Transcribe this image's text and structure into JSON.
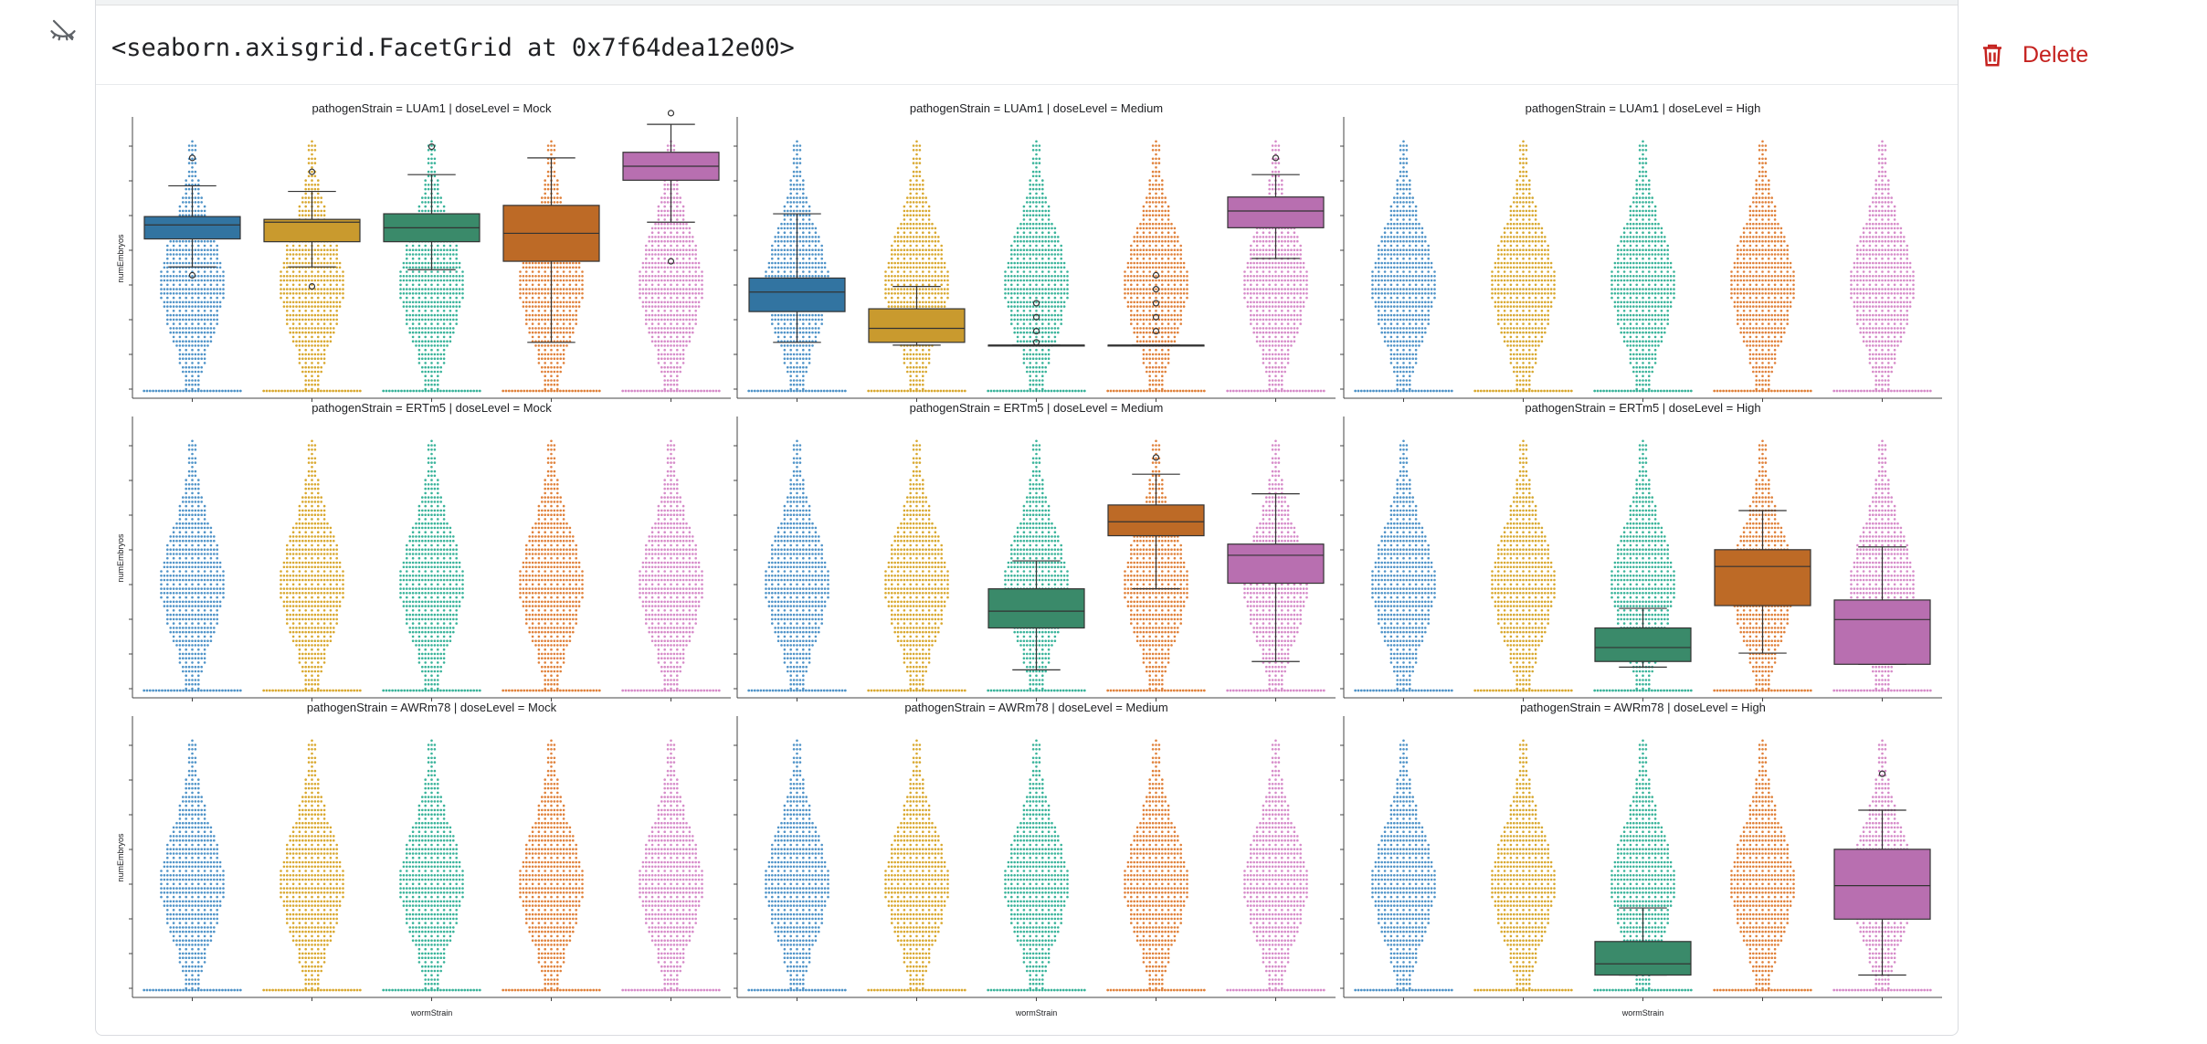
{
  "toolbar": {
    "delete_label": "Delete"
  },
  "output": {
    "repr": "<seaborn.axisgrid.FacetGrid at 0x7f64dea12e00>"
  },
  "icons": {
    "hide": "eye-off-icon",
    "delete": "trash-icon"
  },
  "colors": {
    "delete": "#c5221f",
    "strains": [
      "#3274a1",
      "#c99a2e",
      "#3a8a6a",
      "#bd6a26",
      "#b86fb0"
    ],
    "dot_strains": [
      "#4f93c8",
      "#d9a82f",
      "#39b39a",
      "#e0813a",
      "#d68bc9"
    ]
  },
  "chart_data": {
    "type": "box",
    "ylabel": "numEmbryos",
    "xlabel": "wormStrain",
    "facets": [
      {
        "title": "pathogenStrain = LUAm1 | doseLevel = Mock",
        "boxes": [
          {
            "strain_index": 0,
            "q1": 0.57,
            "med": 0.62,
            "q3": 0.65,
            "wl": 0.47,
            "wh": 0.76,
            "fl": [
              0.44
            ],
            "fh": [
              0.86
            ]
          },
          {
            "strain_index": 1,
            "q1": 0.56,
            "med": 0.63,
            "q3": 0.64,
            "wl": 0.47,
            "wh": 0.74,
            "fl": [
              0.4
            ],
            "fh": [
              0.81
            ]
          },
          {
            "strain_index": 2,
            "q1": 0.56,
            "med": 0.61,
            "q3": 0.66,
            "wl": 0.46,
            "wh": 0.8,
            "fl": [],
            "fh": [
              0.9
            ]
          },
          {
            "strain_index": 3,
            "q1": 0.49,
            "med": 0.59,
            "q3": 0.69,
            "wl": 0.2,
            "wh": 0.86,
            "fl": [],
            "fh": []
          },
          {
            "strain_index": 4,
            "q1": 0.78,
            "med": 0.83,
            "q3": 0.88,
            "wl": 0.63,
            "wh": 0.98,
            "fl": [
              0.49
            ],
            "fh": [
              1.02
            ]
          }
        ]
      },
      {
        "title": "pathogenStrain = LUAm1 | doseLevel = Medium",
        "boxes": [
          {
            "strain_index": 0,
            "q1": 0.31,
            "med": 0.38,
            "q3": 0.43,
            "wl": 0.2,
            "wh": 0.66,
            "fl": [],
            "fh": []
          },
          {
            "strain_index": 1,
            "q1": 0.2,
            "med": 0.25,
            "q3": 0.32,
            "wl": 0.19,
            "wh": 0.4,
            "fl": [],
            "fh": []
          },
          {
            "strain_index": 2,
            "q1": 0.19,
            "med": 0.19,
            "q3": 0.19,
            "wl": 0.19,
            "wh": 0.19,
            "fl": [],
            "fh": [
              0.34,
              0.29,
              0.24,
              0.2
            ]
          },
          {
            "strain_index": 3,
            "q1": 0.19,
            "med": 0.19,
            "q3": 0.19,
            "wl": 0.19,
            "wh": 0.19,
            "fl": [],
            "fh": [
              0.44,
              0.39,
              0.34,
              0.29,
              0.24
            ]
          },
          {
            "strain_index": 4,
            "q1": 0.61,
            "med": 0.67,
            "q3": 0.72,
            "wl": 0.5,
            "wh": 0.8,
            "fl": [],
            "fh": [
              0.86
            ]
          }
        ]
      },
      {
        "title": "pathogenStrain = LUAm1 | doseLevel = High",
        "boxes": []
      },
      {
        "title": "pathogenStrain = ERTm5 | doseLevel = Mock",
        "boxes": []
      },
      {
        "title": "pathogenStrain = ERTm5 | doseLevel = Medium",
        "boxes": [
          {
            "strain_index": 2,
            "q1": 0.25,
            "med": 0.31,
            "q3": 0.39,
            "wl": 0.1,
            "wh": 0.49,
            "fl": [],
            "fh": []
          },
          {
            "strain_index": 3,
            "q1": 0.58,
            "med": 0.63,
            "q3": 0.69,
            "wl": 0.39,
            "wh": 0.8,
            "fl": [],
            "fh": [
              0.86
            ]
          },
          {
            "strain_index": 4,
            "q1": 0.41,
            "med": 0.51,
            "q3": 0.55,
            "wl": 0.13,
            "wh": 0.73,
            "fl": [],
            "fh": []
          }
        ]
      },
      {
        "title": "pathogenStrain = ERTm5 | doseLevel = High",
        "boxes": [
          {
            "strain_index": 2,
            "q1": 0.13,
            "med": 0.18,
            "q3": 0.25,
            "wl": 0.11,
            "wh": 0.32,
            "fl": [],
            "fh": []
          },
          {
            "strain_index": 3,
            "q1": 0.33,
            "med": 0.47,
            "q3": 0.53,
            "wl": 0.16,
            "wh": 0.67,
            "fl": [],
            "fh": []
          },
          {
            "strain_index": 4,
            "q1": 0.12,
            "med": 0.28,
            "q3": 0.35,
            "wl": 0.12,
            "wh": 0.54,
            "fl": [],
            "fh": []
          }
        ]
      },
      {
        "title": "pathogenStrain = AWRm78 | doseLevel = Mock",
        "boxes": []
      },
      {
        "title": "pathogenStrain = AWRm78 | doseLevel = Medium",
        "boxes": []
      },
      {
        "title": "pathogenStrain = AWRm78 | doseLevel = High",
        "boxes": [
          {
            "strain_index": 2,
            "q1": 0.08,
            "med": 0.12,
            "q3": 0.2,
            "wl": 0.08,
            "wh": 0.32,
            "fl": [],
            "fh": []
          },
          {
            "strain_index": 4,
            "q1": 0.28,
            "med": 0.4,
            "q3": 0.53,
            "wl": 0.08,
            "wh": 0.67,
            "fl": [],
            "fh": [
              0.8
            ]
          }
        ]
      }
    ]
  }
}
